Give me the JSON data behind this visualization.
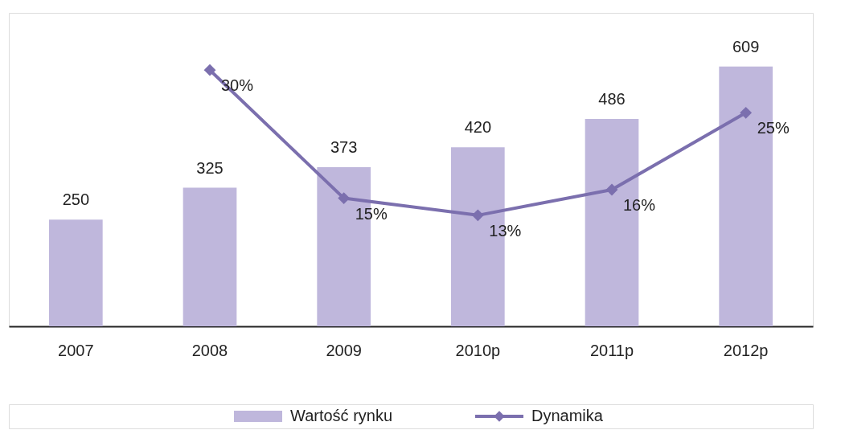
{
  "chart_data": {
    "type": "bar",
    "categories": [
      "2007",
      "2008",
      "2009",
      "2010p",
      "2011p",
      "2012p"
    ],
    "series": [
      {
        "name": "Wartość rynku",
        "color": "#bfb7dc",
        "values": [
          250,
          325,
          373,
          420,
          486,
          609
        ],
        "value_labels": [
          "250",
          "325",
          "373",
          "420",
          "486",
          "609"
        ]
      },
      {
        "name": "Dynamika",
        "type": "line",
        "axis": "y2",
        "color": "#7b6fae",
        "values": [
          null,
          30,
          15,
          13,
          16,
          25
        ],
        "value_labels": [
          null,
          "30%",
          "15%",
          "13%",
          "16%",
          "25%"
        ]
      }
    ],
    "ylim": [
      0,
      735
    ],
    "y2lim": [
      0,
      36.7
    ],
    "tick_labels": "x",
    "grid": false,
    "legend": "bottom",
    "marker": "diamond",
    "line_style": "solid"
  }
}
